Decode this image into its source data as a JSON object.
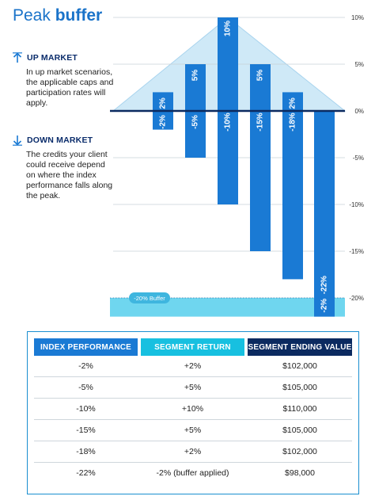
{
  "title": {
    "regular": "Peak ",
    "bold": "buffer"
  },
  "up_market": {
    "heading": "UP MARKET",
    "text": "In up market scenarios, the applicable caps and participation rates will apply.",
    "icon": "up-arrow-icon"
  },
  "down_market": {
    "heading": "DOWN MARKET",
    "text": "The credits your client could receive depend on where the index performance falls along the peak.",
    "icon": "down-arrow-icon"
  },
  "colors": {
    "bar": "#1a7ad4",
    "triangle": "#cfe9f7",
    "buffer_zone": "#6fd6ef",
    "baseline": "#0b2a60",
    "grid": "#c9d0d6",
    "title": "#1a73c9"
  },
  "chart_data": {
    "type": "bar",
    "categories": [
      "-2%",
      "-5%",
      "-10%",
      "-15%",
      "-18%",
      "-22%"
    ],
    "series": [
      {
        "name": "",
        "values": [
          -2,
          -5,
          -10,
          -15,
          -18,
          -22
        ],
        "labels": [
          "-2%",
          "-5%",
          "-10%",
          "-15%",
          "-18%",
          "-22%"
        ]
      },
      {
        "name": "",
        "values": [
          2,
          5,
          10,
          5,
          2,
          -2
        ],
        "labels": [
          "2%",
          "5%",
          "10%",
          "5%",
          "2%",
          "-2%"
        ]
      }
    ],
    "yticks": [
      "10%",
      "5%",
      "0%",
      "-5%",
      "-10%",
      "-15%",
      "-20%"
    ],
    "ytick_values": [
      10,
      5,
      0,
      -5,
      -10,
      -15,
      -20
    ],
    "ylim": [
      -22,
      10
    ],
    "buffer": {
      "level": -20,
      "label": "-20% Buffer"
    },
    "peak": 10,
    "grid": true
  },
  "table": {
    "headers": [
      "INDEX PERFORMANCE",
      "SEGMENT RETURN",
      "SEGMENT ENDING VALUE"
    ],
    "rows": [
      [
        "-2%",
        "+2%",
        "$102,000"
      ],
      [
        "-5%",
        "+5%",
        "$105,000"
      ],
      [
        "-10%",
        "+10%",
        "$110,000"
      ],
      [
        "-15%",
        "+5%",
        "$105,000"
      ],
      [
        "-18%",
        "+2%",
        "$102,000"
      ],
      [
        "-22%",
        "-2% (buffer applied)",
        "$98,000"
      ]
    ]
  }
}
